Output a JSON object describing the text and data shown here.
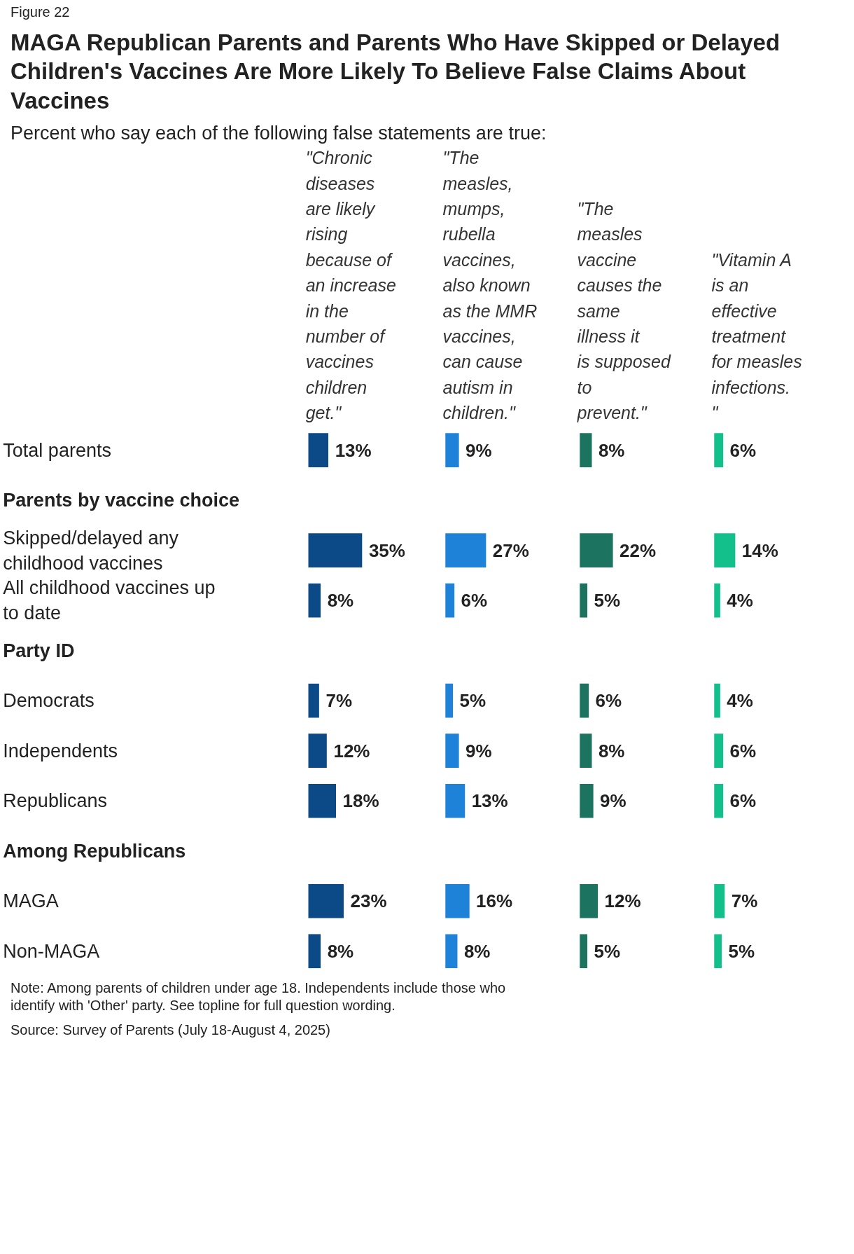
{
  "chart_data": [
    {
      "type": "bar",
      "orientation": "horizontal",
      "title": "\"Chronic diseases are likely rising because of an increase in the number of vaccines children get.\"",
      "subtitle": "Percent who say each of the following false statements are true:",
      "annotations": [
        "Figure 22",
        "MAGA Republican Parents and Parents Who Have Skipped or Delayed Children's Vaccines Are More Likely To Believe False Claims About Vaccines",
        "Note: Among parents of children under age 18. Independents include those who identify with 'Other' party. See topline for full question wording.",
        "Source: Survey of Parents (July 18-August 4, 2025)"
      ],
      "tick_labels": "y",
      "categories": [
        "Total parents",
        "Parents by vaccine choice",
        "Skipped/delayed any childhood vaccines",
        "All childhood vaccines up to date",
        "Party ID",
        "Democrats",
        "Independents",
        "Republicans",
        "Among Republicans",
        "MAGA",
        "Non-MAGA"
      ],
      "values": [
        13,
        null,
        35,
        8,
        null,
        7,
        12,
        18,
        null,
        23,
        8
      ],
      "color": "#0b4a87",
      "value_labels": [
        "13%",
        null,
        "35%",
        "8%",
        null,
        "7%",
        "12%",
        "18%",
        null,
        "23%",
        "8%"
      ]
    },
    {
      "type": "bar",
      "orientation": "horizontal",
      "title": "\"The measles, mumps, rubella vaccines, also known as the MMR vaccines, can cause autism in children.\"",
      "tick_labels": false,
      "categories": [
        "Total parents",
        "Parents by vaccine choice",
        "Skipped/delayed any childhood vaccines",
        "All childhood vaccines up to date",
        "Party ID",
        "Democrats",
        "Independents",
        "Republicans",
        "Among Republicans",
        "MAGA",
        "Non-MAGA"
      ],
      "values": [
        9,
        null,
        27,
        6,
        null,
        5,
        9,
        13,
        null,
        16,
        8
      ],
      "color": "#1e83d8",
      "value_labels": [
        "9%",
        null,
        "27%",
        "6%",
        null,
        "5%",
        "9%",
        "13%",
        null,
        "16%",
        "8%"
      ]
    },
    {
      "type": "bar",
      "orientation": "horizontal",
      "title": "\"The measles vaccine causes the same illness it is supposed to prevent.\"",
      "tick_labels": false,
      "categories": [
        "Total parents",
        "Parents by vaccine choice",
        "Skipped/delayed any childhood vaccines",
        "All childhood vaccines up to date",
        "Party ID",
        "Democrats",
        "Independents",
        "Republicans",
        "Among Republicans",
        "MAGA",
        "Non-MAGA"
      ],
      "values": [
        8,
        null,
        22,
        5,
        null,
        6,
        8,
        9,
        null,
        12,
        5
      ],
      "color": "#1b7360",
      "value_labels": [
        "8%",
        null,
        "22%",
        "5%",
        null,
        "6%",
        "8%",
        "9%",
        null,
        "12%",
        "5%"
      ]
    },
    {
      "type": "bar",
      "orientation": "horizontal",
      "title": "\"Vitamin A is an effective treatment for measles infections.\"",
      "tick_labels": false,
      "categories": [
        "Total parents",
        "Parents by vaccine choice",
        "Skipped/delayed any childhood vaccines",
        "All childhood vaccines up to date",
        "Party ID",
        "Democrats",
        "Independents",
        "Republicans",
        "Among Republicans",
        "MAGA",
        "Non-MAGA"
      ],
      "values": [
        6,
        null,
        14,
        4,
        null,
        4,
        6,
        6,
        null,
        7,
        5
      ],
      "color": "#13bf8b",
      "value_labels": [
        "6%",
        null,
        "14%",
        "4%",
        null,
        "4%",
        "6%",
        "6%",
        null,
        "7%",
        "5%"
      ]
    }
  ]
}
